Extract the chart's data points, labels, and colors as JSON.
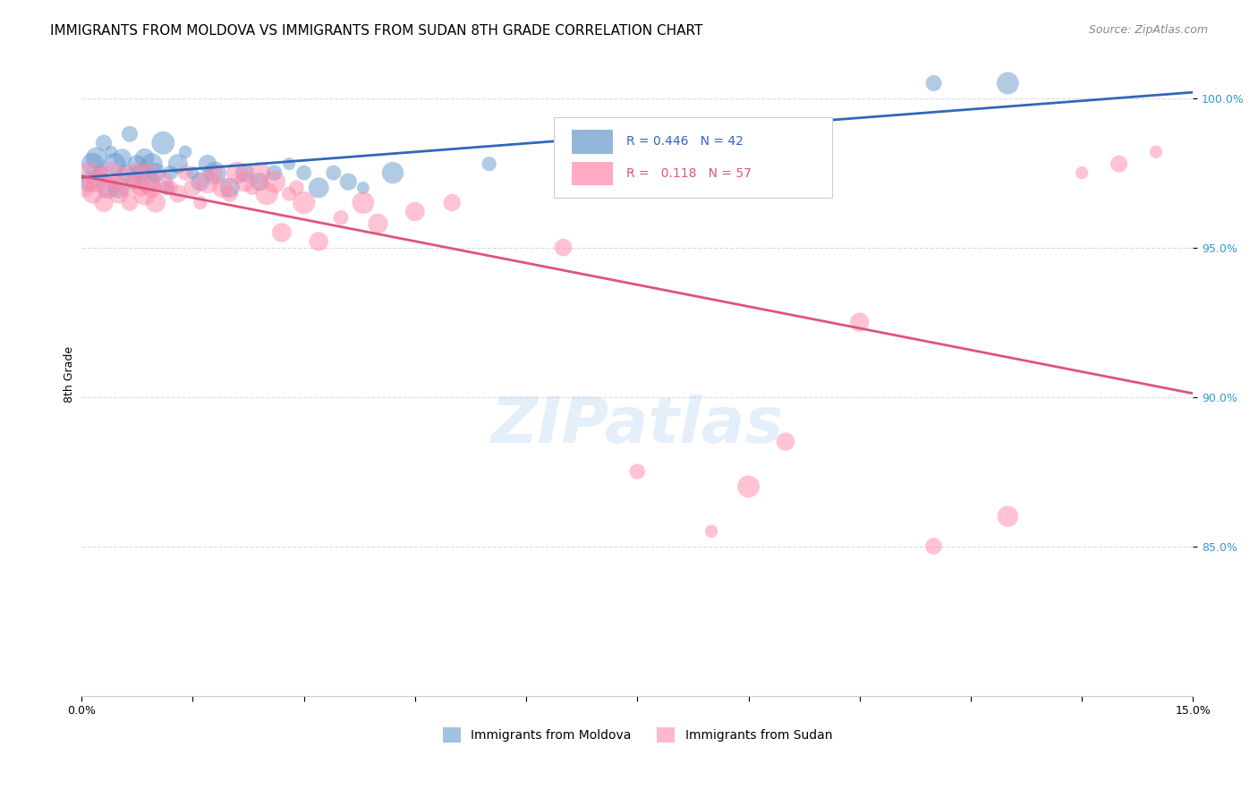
{
  "title": "IMMIGRANTS FROM MOLDOVA VS IMMIGRANTS FROM SUDAN 8TH GRADE CORRELATION CHART",
  "source": "Source: ZipAtlas.com",
  "ylabel": "8th Grade",
  "xlim": [
    0.0,
    15.0
  ],
  "ylim": [
    80.0,
    101.5
  ],
  "y_ticks": [
    85.0,
    90.0,
    95.0,
    100.0
  ],
  "y_tick_labels": [
    "85.0%",
    "90.0%",
    "95.0%",
    "100.0%"
  ],
  "x_ticks": [
    0.0,
    1.5,
    3.0,
    4.5,
    6.0,
    7.5,
    9.0,
    10.5,
    12.0,
    13.5,
    15.0
  ],
  "x_tick_labels": [
    "0.0%",
    "",
    "",
    "",
    "",
    "",
    "",
    "",
    "",
    "",
    "15.0%"
  ],
  "legend_R_blue": "0.446",
  "legend_N_blue": "42",
  "legend_R_pink": "0.118",
  "legend_N_pink": "57",
  "legend_label_blue": "Immigrants from Moldova",
  "legend_label_pink": "Immigrants from Sudan",
  "blue_color": "#6699CC",
  "pink_color": "#FF88AA",
  "blue_line_color": "#3366BB",
  "pink_line_color": "#DD5577",
  "background_color": "#FFFFFF",
  "grid_color": "#CCCCCC",
  "watermark_text": "ZIPatlas",
  "moldova_x": [
    0.1,
    0.15,
    0.2,
    0.25,
    0.3,
    0.35,
    0.4,
    0.45,
    0.5,
    0.55,
    0.6,
    0.65,
    0.7,
    0.75,
    0.8,
    0.85,
    0.9,
    0.95,
    1.0,
    1.1,
    1.15,
    1.2,
    1.3,
    1.4,
    1.5,
    1.6,
    1.7,
    1.8,
    2.0,
    2.2,
    2.4,
    2.6,
    2.8,
    3.0,
    3.2,
    3.4,
    3.6,
    3.8,
    4.2,
    5.5,
    11.5,
    12.5
  ],
  "moldova_y": [
    97.2,
    97.8,
    98.0,
    97.5,
    98.5,
    97.0,
    98.2,
    97.8,
    97.0,
    98.0,
    97.5,
    98.8,
    97.2,
    97.8,
    97.5,
    98.0,
    97.2,
    97.8,
    97.5,
    98.5,
    97.0,
    97.5,
    97.8,
    98.2,
    97.5,
    97.2,
    97.8,
    97.5,
    97.0,
    97.5,
    97.2,
    97.5,
    97.8,
    97.5,
    97.0,
    97.5,
    97.2,
    97.0,
    97.5,
    97.8,
    100.5,
    100.5
  ],
  "sudan_x": [
    0.05,
    0.1,
    0.15,
    0.2,
    0.25,
    0.3,
    0.35,
    0.4,
    0.45,
    0.5,
    0.55,
    0.6,
    0.65,
    0.7,
    0.75,
    0.8,
    0.85,
    0.9,
    0.95,
    1.0,
    1.1,
    1.2,
    1.3,
    1.4,
    1.5,
    1.6,
    1.7,
    1.8,
    1.9,
    2.0,
    2.1,
    2.2,
    2.3,
    2.4,
    2.5,
    2.6,
    2.7,
    2.8,
    2.9,
    3.0,
    3.2,
    3.5,
    3.8,
    4.0,
    4.5,
    5.0,
    6.5,
    7.5,
    8.5,
    9.0,
    9.5,
    10.5,
    11.5,
    12.5,
    13.5,
    14.0,
    14.5
  ],
  "sudan_y": [
    97.0,
    97.5,
    96.8,
    97.2,
    97.5,
    96.5,
    97.0,
    97.5,
    97.2,
    96.8,
    97.5,
    97.0,
    96.5,
    97.2,
    97.5,
    97.0,
    96.8,
    97.5,
    97.0,
    96.5,
    97.2,
    97.0,
    96.8,
    97.5,
    97.0,
    96.5,
    97.2,
    97.5,
    97.0,
    96.8,
    97.5,
    97.2,
    97.0,
    97.5,
    96.8,
    97.2,
    95.5,
    96.8,
    97.0,
    96.5,
    95.2,
    96.0,
    96.5,
    95.8,
    96.2,
    96.5,
    95.0,
    87.5,
    85.5,
    87.0,
    88.5,
    92.5,
    85.0,
    86.0,
    97.5,
    97.8,
    98.2
  ],
  "title_fontsize": 11,
  "source_fontsize": 9,
  "axis_label_fontsize": 9,
  "tick_fontsize": 9
}
